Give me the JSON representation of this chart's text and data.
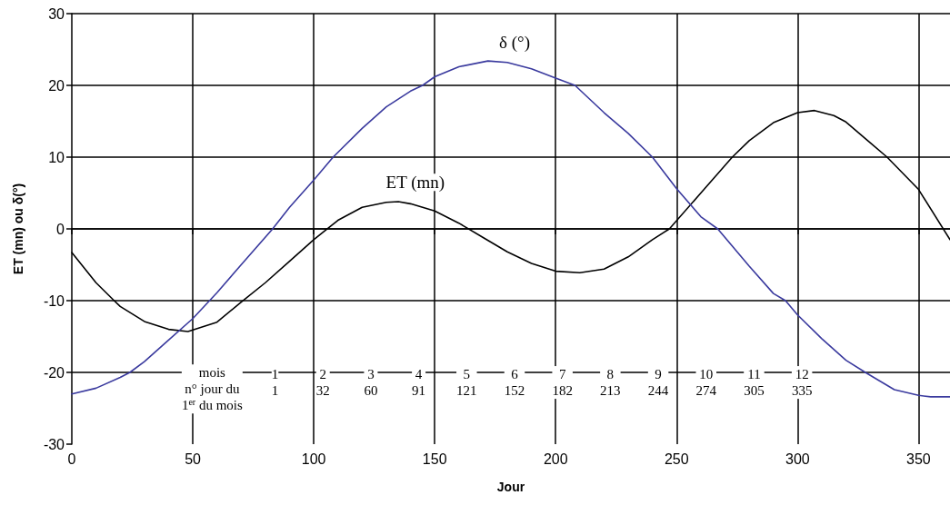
{
  "chart_data": {
    "type": "line",
    "xlabel": "Jour",
    "ylabel": "ET (mn) ou δ(°)",
    "xlim": [
      0,
      363
    ],
    "xticks": [
      0,
      50,
      100,
      150,
      200,
      250,
      300,
      350
    ],
    "ylim": [
      -30,
      30
    ],
    "yticks": [
      -30,
      -20,
      -10,
      0,
      10,
      20,
      30
    ],
    "grid": true,
    "marker": "none",
    "line_style": "solid",
    "series": [
      {
        "color": "#000000",
        "x": [
          0,
          10,
          17.5,
          20,
          30,
          40,
          48,
          60,
          70,
          80,
          90,
          100,
          110,
          120,
          130,
          135,
          140,
          150,
          160,
          170,
          180,
          190,
          200,
          210,
          220,
          230,
          240,
          247,
          260,
          273,
          280,
          290,
          300,
          307,
          315,
          320,
          330,
          337,
          350,
          363
        ],
        "values": [
          -3.3,
          -7.5,
          -10,
          -10.8,
          -12.9,
          -14.0,
          -14.3,
          -13.0,
          -10.2,
          -7.5,
          -4.5,
          -1.5,
          1.2,
          3.0,
          3.7,
          3.8,
          3.5,
          2.5,
          0.8,
          -1.2,
          -3.2,
          -4.8,
          -5.9,
          -6.1,
          -5.6,
          -3.9,
          -1.5,
          0,
          5.0,
          10,
          12.3,
          14.8,
          16.2,
          16.5,
          15.8,
          14.9,
          12.0,
          10,
          5.5,
          -1.5
        ]
      },
      {
        "color": "#3a3a9e",
        "x": [
          0,
          10,
          20,
          24,
          30,
          40,
          50,
          60,
          70,
          83,
          90,
          100,
          108,
          120,
          130,
          140,
          145,
          150,
          160,
          172,
          180,
          190,
          200,
          208,
          220,
          230,
          240,
          250,
          260,
          267,
          280,
          290,
          295,
          300,
          310,
          320,
          328,
          340,
          350,
          355,
          363
        ],
        "values": [
          -23.0,
          -22.2,
          -20.7,
          -20,
          -18.5,
          -15.5,
          -12.5,
          -8.9,
          -5.0,
          0,
          3.0,
          6.8,
          10,
          14.0,
          17.0,
          19.2,
          20,
          21.2,
          22.6,
          23.4,
          23.2,
          22.3,
          21.0,
          20,
          16.2,
          13.3,
          10,
          5.6,
          1.7,
          0,
          -5.2,
          -9.0,
          -10,
          -12.0,
          -15.3,
          -18.3,
          -20,
          -22.4,
          -23.2,
          -23.4,
          -23.4
        ]
      }
    ],
    "annotations": [
      "δ (°)",
      "ET (mn)",
      "mois\nn° jour du\n1$^{er}$ du mois",
      "1\n1",
      "2\n32",
      "3\n60",
      "4\n91",
      "5\n121",
      "6\n152",
      "7\n182",
      "8\n213",
      "9\n244",
      "10\n274",
      "11\n305",
      "12\n335"
    ]
  }
}
